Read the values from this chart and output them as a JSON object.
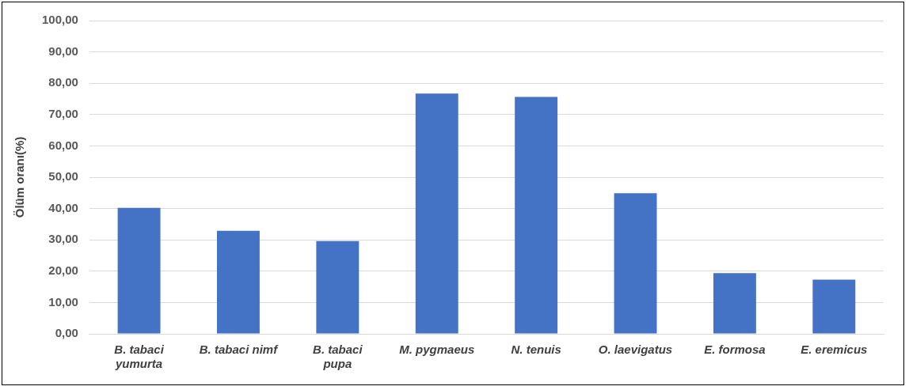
{
  "chart_data": {
    "type": "bar",
    "ylabel": "Ölüm oranı(%)",
    "categories": [
      "B. tabaci yumurta",
      "B. tabaci nimf",
      "B. tabaci pupa",
      "M. pygmaeus",
      "N. tenuis",
      "O. laevigatus",
      "E. formosa",
      "E. eremicus"
    ],
    "values": [
      40.2,
      32.9,
      29.6,
      76.7,
      75.6,
      44.9,
      19.4,
      17.3
    ],
    "color": "#4472c4",
    "ylim": [
      0,
      100
    ],
    "yticks": [
      {
        "value": 0,
        "label": "0,00"
      },
      {
        "value": 10,
        "label": "10,00"
      },
      {
        "value": 20,
        "label": "20,00"
      },
      {
        "value": 30,
        "label": "30,00"
      },
      {
        "value": 40,
        "label": "40,00"
      },
      {
        "value": 50,
        "label": "50,00"
      },
      {
        "value": 60,
        "label": "60,00"
      },
      {
        "value": 70,
        "label": "70,00"
      },
      {
        "value": 80,
        "label": "80,00"
      },
      {
        "value": 90,
        "label": "90,00"
      },
      {
        "value": 100,
        "label": "100,00"
      }
    ],
    "grid": "y",
    "legend": false
  }
}
